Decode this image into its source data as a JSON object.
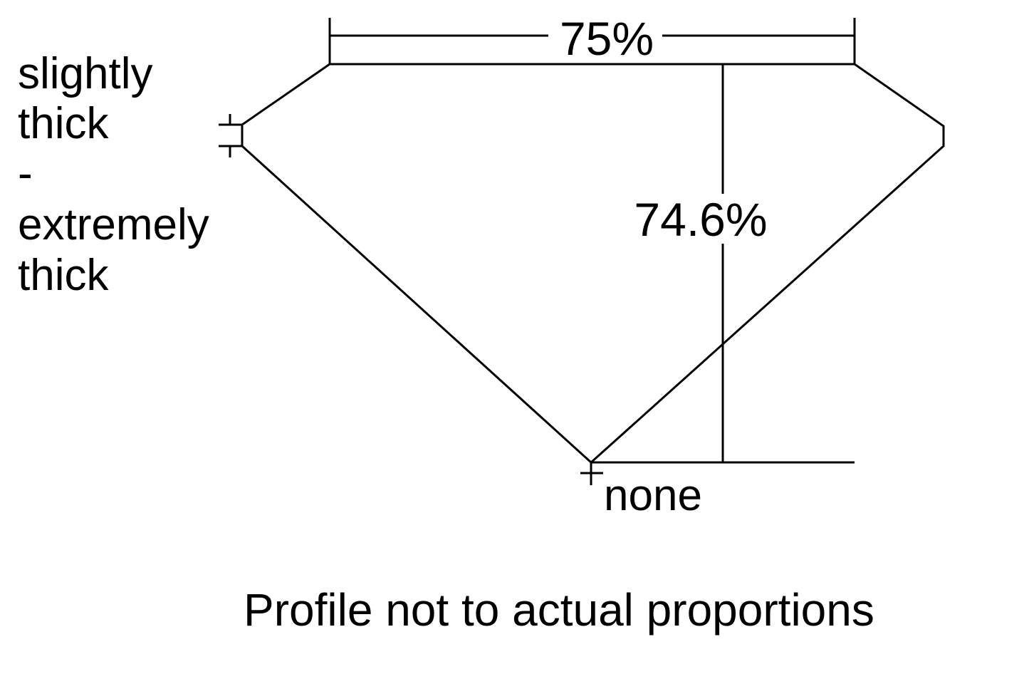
{
  "diagram": {
    "table_percent": "75%",
    "depth_percent": "74.6%",
    "girdle_label": [
      "slightly",
      "thick",
      "-",
      "extremely",
      "thick"
    ],
    "culet_label": "none",
    "caption": "Profile not to actual proportions",
    "line_color": "#000000",
    "background": "#ffffff"
  }
}
